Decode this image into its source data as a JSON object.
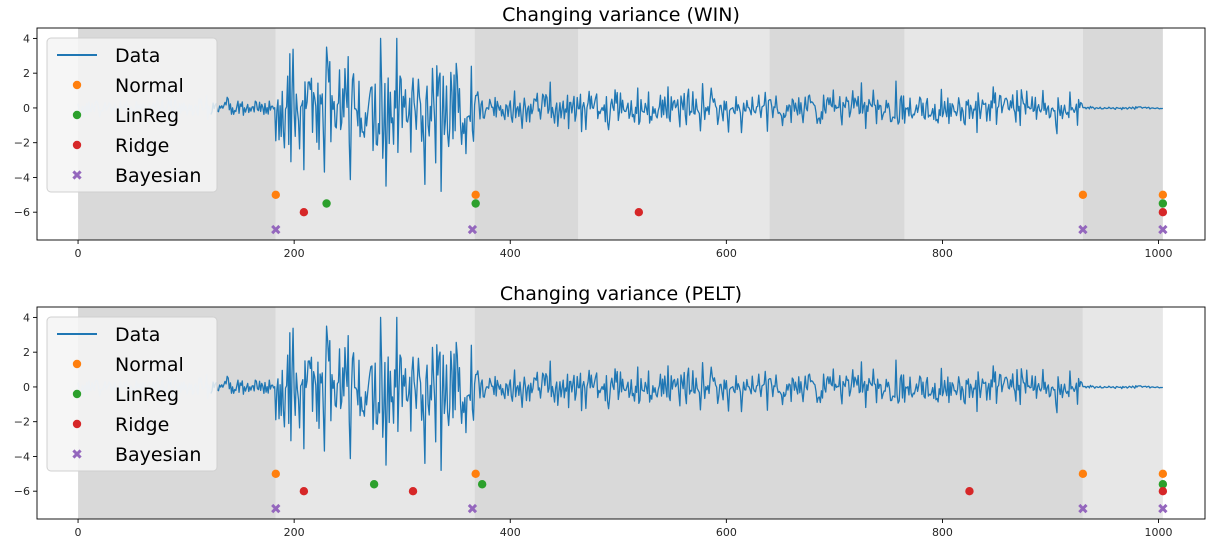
{
  "chart_data": [
    {
      "type": "line",
      "title": "Changing variance (WIN)",
      "xlim": [
        -38,
        1043
      ],
      "ylim": [
        -7.6,
        4.6
      ],
      "xticks": [
        0,
        200,
        400,
        600,
        800,
        1000
      ],
      "yticks": [
        4,
        2,
        0,
        -2,
        -4,
        -6
      ],
      "xticklabels": [
        "0",
        "200",
        "400",
        "600",
        "800",
        "1000"
      ],
      "yticklabels": [
        "4",
        "2",
        "0",
        "−2",
        "−4",
        "−6"
      ],
      "legend": {
        "placement": "top-left",
        "entries": [
          "Data",
          "Normal",
          "LinReg",
          "Ridge",
          "Bayesian"
        ]
      },
      "segments": [
        {
          "start": 0,
          "end": 183,
          "shade": "dark"
        },
        {
          "start": 183,
          "end": 367,
          "shade": "light"
        },
        {
          "start": 367,
          "end": 463,
          "shade": "dark"
        },
        {
          "start": 463,
          "end": 640,
          "shade": "light"
        },
        {
          "start": 640,
          "end": 765,
          "shade": "dark"
        },
        {
          "start": 765,
          "end": 930,
          "shade": "light"
        },
        {
          "start": 930,
          "end": 1004,
          "shade": "dark"
        }
      ],
      "series": [
        {
          "name": "Data",
          "kind": "line",
          "color": "#1f77b4"
        },
        {
          "name": "Normal",
          "kind": "marker",
          "marker": "circle",
          "color": "#ff7f0e",
          "x": [
            183,
            368,
            930,
            1004
          ],
          "y": [
            -5.0,
            -5.0,
            -5.0,
            -5.0
          ]
        },
        {
          "name": "LinReg",
          "kind": "marker",
          "marker": "circle",
          "color": "#2ca02c",
          "x": [
            230,
            368,
            1004
          ],
          "y": [
            -5.5,
            -5.5,
            -5.5
          ]
        },
        {
          "name": "Ridge",
          "kind": "marker",
          "marker": "circle",
          "color": "#d62728",
          "x": [
            209,
            519,
            1004
          ],
          "y": [
            -6.0,
            -6.0,
            -6.0
          ]
        },
        {
          "name": "Bayesian",
          "kind": "marker",
          "marker": "x",
          "color": "#9467bd",
          "x": [
            183,
            365,
            930,
            1004
          ],
          "y": [
            -7.0,
            -7.0,
            -7.0,
            -7.0
          ]
        }
      ]
    },
    {
      "type": "line",
      "title": "Changing variance (PELT)",
      "xlim": [
        -38,
        1043
      ],
      "ylim": [
        -7.6,
        4.6
      ],
      "xticks": [
        0,
        200,
        400,
        600,
        800,
        1000
      ],
      "yticks": [
        4,
        2,
        0,
        -2,
        -4,
        -6
      ],
      "xticklabels": [
        "0",
        "200",
        "400",
        "600",
        "800",
        "1000"
      ],
      "yticklabels": [
        "4",
        "2",
        "0",
        "−2",
        "−4",
        "−6"
      ],
      "legend": {
        "placement": "top-left",
        "entries": [
          "Data",
          "Normal",
          "LinReg",
          "Ridge",
          "Bayesian"
        ]
      },
      "segments": [
        {
          "start": 0,
          "end": 183,
          "shade": "dark"
        },
        {
          "start": 183,
          "end": 367,
          "shade": "light"
        },
        {
          "start": 367,
          "end": 930,
          "shade": "dark"
        },
        {
          "start": 930,
          "end": 1004,
          "shade": "light"
        }
      ],
      "series": [
        {
          "name": "Data",
          "kind": "line",
          "color": "#1f77b4"
        },
        {
          "name": "Normal",
          "kind": "marker",
          "marker": "circle",
          "color": "#ff7f0e",
          "x": [
            183,
            368,
            930,
            1004
          ],
          "y": [
            -5.0,
            -5.0,
            -5.0,
            -5.0
          ]
        },
        {
          "name": "LinReg",
          "kind": "marker",
          "marker": "circle",
          "color": "#2ca02c",
          "x": [
            274,
            374,
            1004
          ],
          "y": [
            -5.6,
            -5.6,
            -5.6
          ]
        },
        {
          "name": "Ridge",
          "kind": "marker",
          "marker": "circle",
          "color": "#d62728",
          "x": [
            209,
            310,
            825,
            1004
          ],
          "y": [
            -6.0,
            -6.0,
            -6.0,
            -6.0
          ]
        },
        {
          "name": "Bayesian",
          "kind": "marker",
          "marker": "x",
          "color": "#9467bd",
          "x": [
            183,
            365,
            930,
            1004
          ],
          "y": [
            -7.0,
            -7.0,
            -7.0,
            -7.0
          ]
        }
      ]
    }
  ],
  "data_signal": {
    "n": 1005,
    "regimes": [
      {
        "start": 0,
        "end": 123,
        "std": 0.28
      },
      {
        "start": 123,
        "end": 183,
        "std": 0.3
      },
      {
        "start": 183,
        "end": 367,
        "std": 1.7
      },
      {
        "start": 367,
        "end": 930,
        "std": 0.55
      },
      {
        "start": 930,
        "end": 1005,
        "std": 0.04
      }
    ]
  },
  "colors": {
    "shade_dark": "#d9d9d9",
    "shade_light": "#e7e7e7",
    "light_data": "#c6dff0"
  }
}
